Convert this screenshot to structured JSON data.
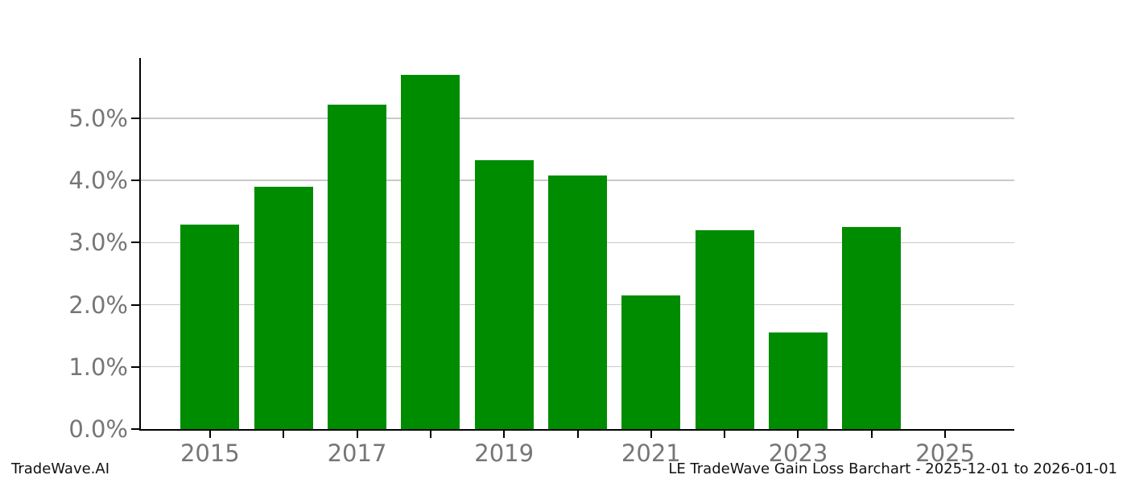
{
  "chart_data": {
    "type": "bar",
    "categories": [
      2015,
      2016,
      2017,
      2018,
      2019,
      2020,
      2021,
      2022,
      2023,
      2024,
      2025
    ],
    "values": [
      3.29,
      3.9,
      5.22,
      5.7,
      4.33,
      4.08,
      2.15,
      3.2,
      1.56,
      3.25,
      0
    ],
    "title": "LE TradeWave Gain Loss Barchart - 2025-12-01 to 2026-01-01",
    "xlabel": "",
    "ylabel": "",
    "xlim": [
      2014.06,
      2025.94
    ],
    "ylim": [
      0,
      5.97
    ],
    "bar_width_years": 0.8,
    "grid": true,
    "legend": "none",
    "x_ticks": [
      2015,
      2016,
      2017,
      2018,
      2019,
      2020,
      2021,
      2022,
      2023,
      2024,
      2025
    ],
    "x_tick_label_positions": [
      2015,
      2017,
      2019,
      2021,
      2023,
      2025
    ],
    "x_tick_labels": [
      "2015",
      "2017",
      "2019",
      "2021",
      "2023",
      "2025"
    ],
    "y_ticks": [
      0,
      1,
      2,
      3,
      4,
      5
    ],
    "y_tick_labels": [
      "0.0%",
      "1.0%",
      "2.0%",
      "3.0%",
      "4.0%",
      "5.0%"
    ]
  },
  "footer": {
    "brand": "TradeWave.AI"
  },
  "colors": {
    "bar": "#008C00",
    "grid": "#c9c9c9",
    "tick_label": "#767676",
    "axis": "#000000",
    "background": "#ffffff"
  }
}
